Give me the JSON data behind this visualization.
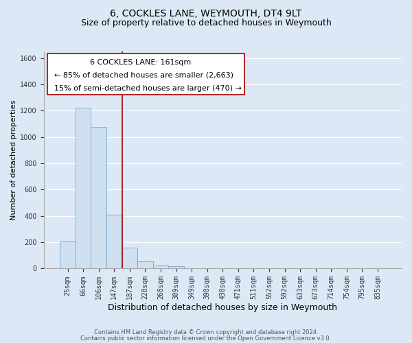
{
  "title": "6, COCKLES LANE, WEYMOUTH, DT4 9LT",
  "subtitle": "Size of property relative to detached houses in Weymouth",
  "xlabel": "Distribution of detached houses by size in Weymouth",
  "ylabel": "Number of detached properties",
  "bar_labels": [
    "25sqm",
    "66sqm",
    "106sqm",
    "147sqm",
    "187sqm",
    "228sqm",
    "268sqm",
    "309sqm",
    "349sqm",
    "390sqm",
    "430sqm",
    "471sqm",
    "511sqm",
    "552sqm",
    "592sqm",
    "633sqm",
    "673sqm",
    "714sqm",
    "754sqm",
    "795sqm",
    "835sqm"
  ],
  "bar_values": [
    205,
    1225,
    1075,
    410,
    160,
    55,
    25,
    18,
    0,
    0,
    0,
    0,
    0,
    0,
    0,
    0,
    0,
    0,
    0,
    0,
    0
  ],
  "bar_color": "#cfe0f0",
  "bar_edge_color": "#6fa8d4",
  "ylim": [
    0,
    1650
  ],
  "yticks": [
    0,
    200,
    400,
    600,
    800,
    1000,
    1200,
    1400,
    1600
  ],
  "vline_x": 3.5,
  "vline_color": "#aa0000",
  "annotation_line1": "6 COCKLES LANE: 161sqm",
  "annotation_line2": "← 85% of detached houses are smaller (2,663)",
  "annotation_line3": "15% of semi-detached houses are larger (470) →",
  "footer_line1": "Contains HM Land Registry data © Crown copyright and database right 2024.",
  "footer_line2": "Contains public sector information licensed under the Open Government Licence v3.0.",
  "outer_bg_color": "#dce8f5",
  "plot_bg_color": "#dce8f5",
  "grid_color": "#ffffff",
  "title_fontsize": 10,
  "subtitle_fontsize": 9,
  "xlabel_fontsize": 9,
  "ylabel_fontsize": 8,
  "tick_fontsize": 7,
  "annotation_fontsize": 8,
  "footer_fontsize": 6
}
